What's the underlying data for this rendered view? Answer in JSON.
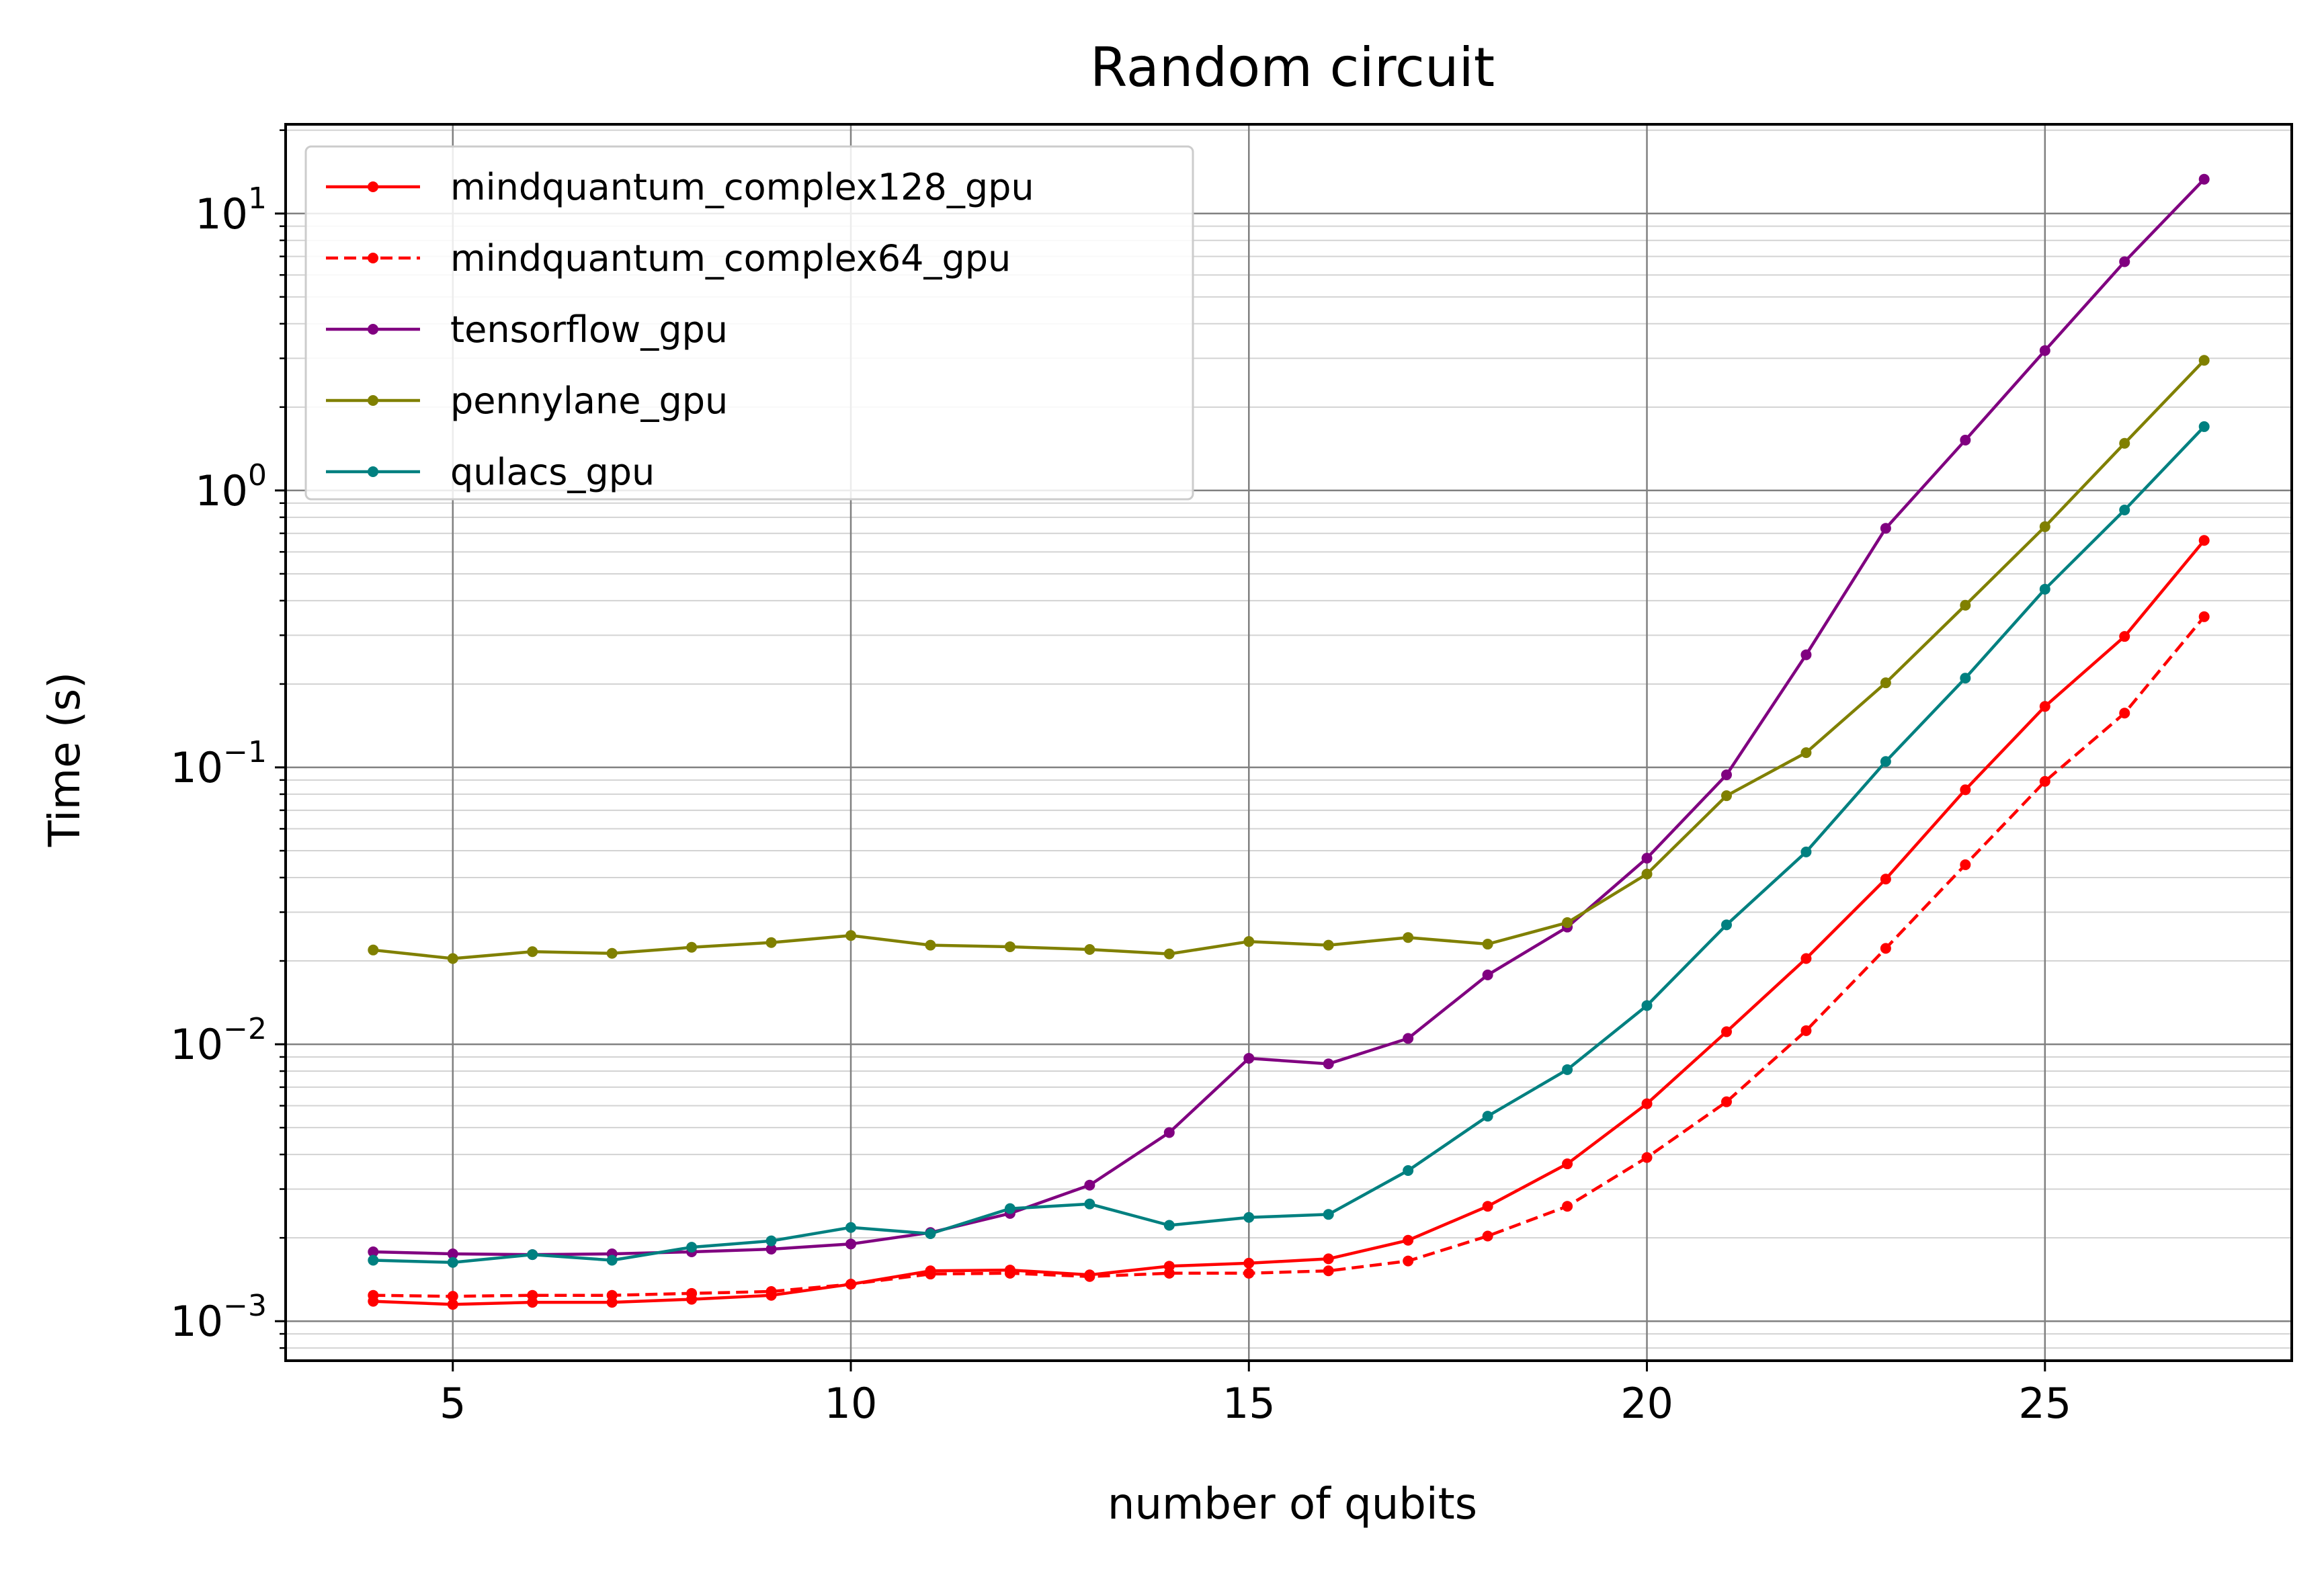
{
  "chart_data": {
    "type": "line",
    "title": "Random circuit",
    "xlabel": "number of qubits",
    "ylabel": "Time (s)",
    "xlim": [
      2.9,
      28.1
    ],
    "ylim": [
      0.00072,
      21
    ],
    "yscale": "log",
    "grid": true,
    "legend_position": "upper-left",
    "x_ticks": [
      5,
      10,
      15,
      20,
      25
    ],
    "y_ticks": [
      {
        "base": "10",
        "exp": "1",
        "value": 10
      },
      {
        "base": "10",
        "exp": "0",
        "value": 1
      },
      {
        "base": "10",
        "exp": "−1",
        "value": 0.1
      },
      {
        "base": "10",
        "exp": "−2",
        "value": 0.01
      },
      {
        "base": "10",
        "exp": "−3",
        "value": 0.001
      }
    ],
    "x": [
      4,
      5,
      6,
      7,
      8,
      9,
      10,
      11,
      12,
      13,
      14,
      15,
      16,
      17,
      18,
      19,
      20,
      21,
      22,
      23,
      24,
      25,
      26,
      27
    ],
    "series": [
      {
        "name": "mindquantum_complex128_gpu",
        "color": "#ff0000",
        "dashed": false,
        "values": [
          0.00118,
          0.00115,
          0.00117,
          0.00117,
          0.0012,
          0.00124,
          0.00136,
          0.00152,
          0.00153,
          0.00147,
          0.00158,
          0.00162,
          0.00168,
          0.00196,
          0.0026,
          0.0037,
          0.0061,
          0.0111,
          0.0204,
          0.0395,
          0.083,
          0.166,
          0.297,
          0.66
        ]
      },
      {
        "name": "mindquantum_complex64_gpu",
        "color": "#ff0000",
        "dashed": true,
        "values": [
          0.00124,
          0.00123,
          0.00124,
          0.00124,
          0.00126,
          0.00128,
          0.00136,
          0.00148,
          0.00149,
          0.00145,
          0.00149,
          0.00149,
          0.00152,
          0.00165,
          0.00203,
          0.0026,
          0.0039,
          0.0062,
          0.0112,
          0.0222,
          0.0445,
          0.089,
          0.157,
          0.35
        ]
      },
      {
        "name": "tensorflow_gpu",
        "color": "#800080",
        "dashed": false,
        "values": [
          0.00178,
          0.00175,
          0.00174,
          0.00175,
          0.00178,
          0.00182,
          0.0019,
          0.00209,
          0.00245,
          0.0031,
          0.0048,
          0.0089,
          0.0085,
          0.0105,
          0.0178,
          0.0265,
          0.047,
          0.094,
          0.255,
          0.73,
          1.52,
          3.2,
          6.7,
          13.3
        ]
      },
      {
        "name": "pennylane_gpu",
        "color": "#808000",
        "dashed": false,
        "values": [
          0.0219,
          0.0204,
          0.0216,
          0.0213,
          0.0224,
          0.0233,
          0.0247,
          0.0228,
          0.0225,
          0.022,
          0.0212,
          0.0235,
          0.0228,
          0.0243,
          0.023,
          0.0275,
          0.0412,
          0.079,
          0.113,
          0.202,
          0.385,
          0.74,
          1.48,
          2.95
        ]
      },
      {
        "name": "qulacs_gpu",
        "color": "#008080",
        "dashed": false,
        "values": [
          0.00166,
          0.00163,
          0.00174,
          0.00166,
          0.00185,
          0.00195,
          0.00218,
          0.00207,
          0.00255,
          0.00265,
          0.00222,
          0.00237,
          0.00243,
          0.0035,
          0.0055,
          0.0081,
          0.0138,
          0.027,
          0.0495,
          0.105,
          0.21,
          0.44,
          0.85,
          1.7
        ]
      }
    ]
  }
}
